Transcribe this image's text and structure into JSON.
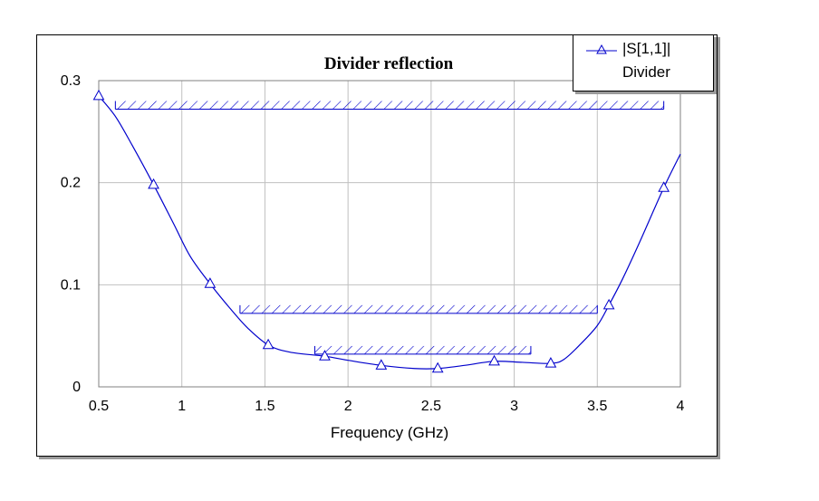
{
  "chart_data": {
    "type": "line",
    "title": "Divider reflection",
    "xlabel": "Frequency (GHz)",
    "ylabel": "",
    "xlim": [
      0.5,
      4
    ],
    "ylim": [
      0,
      0.3
    ],
    "x_ticks": [
      "0.5",
      "1",
      "1.5",
      "2",
      "2.5",
      "3",
      "3.5",
      "4"
    ],
    "y_ticks": [
      "0",
      "0.1",
      "0.2",
      "0.3"
    ],
    "grid": true,
    "legend_position": "top-right",
    "series": [
      {
        "name": "|S[1,1]|",
        "description": "Divider",
        "color": "#0000cc",
        "marker": "triangle",
        "x": [
          0.5,
          0.6,
          0.7,
          0.83,
          0.95,
          1.05,
          1.17,
          1.3,
          1.4,
          1.52,
          1.65,
          1.86,
          2.0,
          2.2,
          2.4,
          2.54,
          2.7,
          2.88,
          3.05,
          3.22,
          3.3,
          3.4,
          3.5,
          3.57,
          3.65,
          3.75,
          3.9,
          4.0
        ],
        "y": [
          0.285,
          0.265,
          0.237,
          0.198,
          0.16,
          0.128,
          0.101,
          0.075,
          0.057,
          0.041,
          0.034,
          0.03,
          0.026,
          0.021,
          0.018,
          0.018,
          0.021,
          0.025,
          0.024,
          0.023,
          0.027,
          0.042,
          0.06,
          0.08,
          0.105,
          0.14,
          0.195,
          0.228
        ],
        "marker_x": [
          0.5,
          0.83,
          1.17,
          1.52,
          1.86,
          2.2,
          2.54,
          2.88,
          3.22,
          3.57,
          3.9
        ],
        "marker_y": [
          0.285,
          0.198,
          0.101,
          0.041,
          0.03,
          0.021,
          0.018,
          0.025,
          0.023,
          0.08,
          0.195
        ]
      }
    ],
    "spec_bars": [
      {
        "x_start": 0.6,
        "x_end": 3.9,
        "y": 0.28
      },
      {
        "x_start": 1.35,
        "x_end": 3.5,
        "y": 0.08
      },
      {
        "x_start": 1.8,
        "x_end": 3.1,
        "y": 0.04
      }
    ]
  }
}
